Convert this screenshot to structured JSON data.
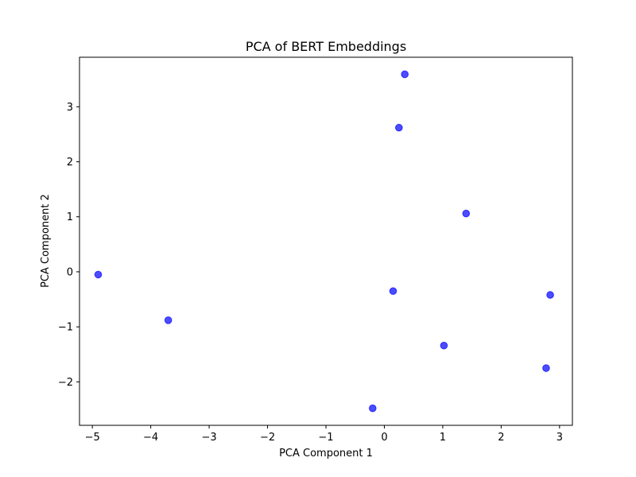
{
  "chart_data": {
    "type": "scatter",
    "title": "PCA of BERT Embeddings",
    "xlabel": "PCA Component 1",
    "ylabel": "PCA Component 2",
    "xlim": [
      -5.22,
      3.22
    ],
    "ylim": [
      -2.79,
      3.9
    ],
    "xticks": [
      -5,
      -4,
      -3,
      -2,
      -1,
      0,
      1,
      2,
      3
    ],
    "yticks": [
      -2,
      -1,
      0,
      1,
      2,
      3
    ],
    "xtick_labels": [
      "−5",
      "−4",
      "−3",
      "−2",
      "−1",
      "0",
      "1",
      "2",
      "3"
    ],
    "ytick_labels": [
      "−2",
      "−1",
      "0",
      "1",
      "2",
      "3"
    ],
    "grid": false,
    "marker_color": "#0000ff",
    "marker_alpha": 0.7,
    "series": [
      {
        "points": [
          {
            "x": -4.9,
            "y": -0.05
          },
          {
            "x": -3.7,
            "y": -0.88
          },
          {
            "x": -0.2,
            "y": -2.48
          },
          {
            "x": 0.15,
            "y": -0.35
          },
          {
            "x": 0.25,
            "y": 2.62
          },
          {
            "x": 0.35,
            "y": 3.59
          },
          {
            "x": 1.02,
            "y": -1.34
          },
          {
            "x": 1.4,
            "y": 1.06
          },
          {
            "x": 2.77,
            "y": -1.75
          },
          {
            "x": 2.84,
            "y": -0.42
          }
        ]
      }
    ]
  }
}
